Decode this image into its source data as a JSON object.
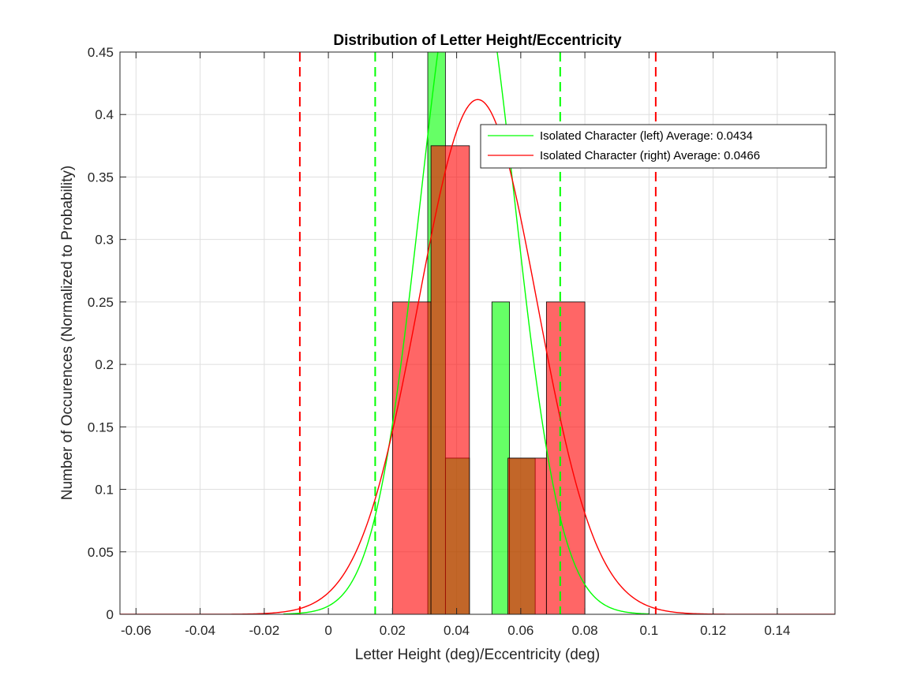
{
  "chart_data": {
    "type": "bar",
    "title": "Distribution of Letter Height/Eccentricity",
    "xlabel": "Letter Height (deg)/Eccentricity (deg)",
    "ylabel": "Number of Occurences (Normalized to Probability)",
    "xlim": [
      -0.065,
      0.158
    ],
    "ylim": [
      0,
      0.45
    ],
    "xticks": [
      -0.06,
      -0.04,
      -0.02,
      0,
      0.02,
      0.04,
      0.06,
      0.08,
      0.1,
      0.12,
      0.14
    ],
    "xtick_labels": [
      "-0.06",
      "-0.04",
      "-0.02",
      "0",
      "0.02",
      "0.04",
      "0.06",
      "0.08",
      "0.1",
      "0.12",
      "0.14"
    ],
    "yticks": [
      0,
      0.05,
      0.1,
      0.15,
      0.2,
      0.25,
      0.3,
      0.35,
      0.4,
      0.45
    ],
    "ytick_labels": [
      "0",
      "0.05",
      "0.1",
      "0.15",
      "0.2",
      "0.25",
      "0.3",
      "0.35",
      "0.4",
      "0.45"
    ],
    "grid": true,
    "legend_position": "top-right",
    "histograms": [
      {
        "color": "#00ff00",
        "bars": [
          {
            "x0": 0.031,
            "x1": 0.0365,
            "value": 0.5
          },
          {
            "x0": 0.0365,
            "x1": 0.044,
            "value": 0.125
          },
          {
            "x0": 0.051,
            "x1": 0.0565,
            "value": 0.25
          },
          {
            "x0": 0.0565,
            "x1": 0.0645,
            "value": 0.125
          }
        ]
      },
      {
        "color": "#ff0000",
        "bars": [
          {
            "x0": 0.02,
            "x1": 0.032,
            "value": 0.25
          },
          {
            "x0": 0.032,
            "x1": 0.044,
            "value": 0.375
          },
          {
            "x0": 0.056,
            "x1": 0.068,
            "value": 0.125
          },
          {
            "x0": 0.068,
            "x1": 0.08,
            "value": 0.25
          }
        ]
      }
    ],
    "series": [
      {
        "name": "Isolated Character (left) Average: 0.0434",
        "color": "#00ff00",
        "mean": 0.0434,
        "sd": 0.0146,
        "peak": 0.55,
        "x_range": [
          -0.014,
          0.1
        ]
      },
      {
        "name": "Isolated Character (right) Average: 0.0466",
        "color": "#ff0000",
        "mean": 0.0466,
        "sd": 0.0185,
        "peak": 0.412,
        "x_range": [
          -0.065,
          0.158
        ]
      }
    ],
    "reference_lines": [
      {
        "x": -0.0089,
        "color": "#ff0000",
        "style": "dashed"
      },
      {
        "x": 0.0146,
        "color": "#00ff00",
        "style": "dashed"
      },
      {
        "x": 0.0723,
        "color": "#00ff00",
        "style": "dashed"
      },
      {
        "x": 0.1021,
        "color": "#ff0000",
        "style": "dashed"
      }
    ]
  }
}
